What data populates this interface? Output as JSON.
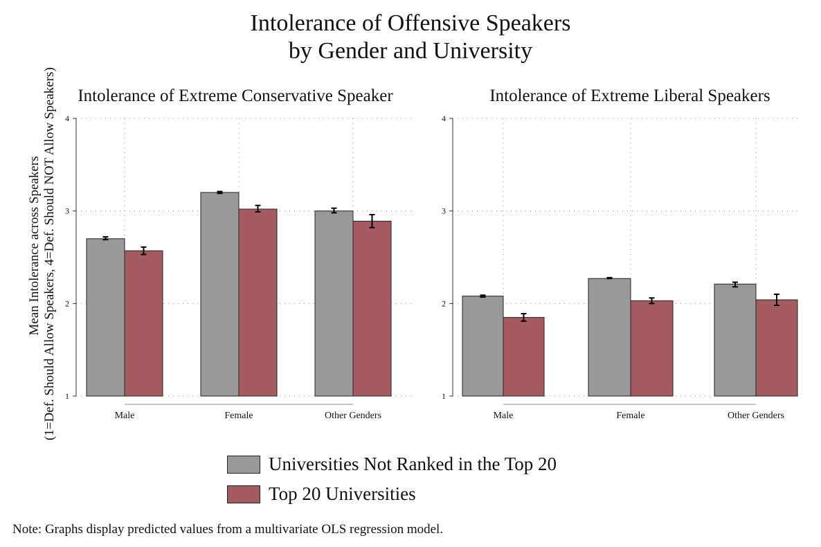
{
  "title_line1": "Intolerance of Offensive Speakers",
  "title_line2": "by Gender and University",
  "ylabel_line1": "Mean Intolerance across Speakers",
  "ylabel_line2": "(1=Def. Should Allow Speakers, 4=Def. Should NOT Allow Speakers)",
  "colors": {
    "not_top20": "#999999",
    "top20": "#a45c60",
    "axis": "#333333",
    "grid": "#888888"
  },
  "legend": [
    {
      "label": "Universities Not Ranked in the Top 20",
      "color": "#999999"
    },
    {
      "label": "Top 20 Universities",
      "color": "#a45c60"
    }
  ],
  "note": "Note: Graphs display predicted values from a multivariate OLS regression model.",
  "chart_data": [
    {
      "type": "bar",
      "title": "Intolerance of Extreme Conservative Speaker",
      "categories": [
        "Male",
        "Female",
        "Other Genders"
      ],
      "ylim": [
        1,
        4
      ],
      "yticks": [
        "1",
        "2",
        "3",
        "4"
      ],
      "grid": true,
      "series": [
        {
          "name": "Universities Not Ranked in the Top 20",
          "values": [
            2.7,
            3.2,
            3.0
          ],
          "ci_low": [
            2.69,
            3.19,
            2.98
          ],
          "ci_high": [
            2.72,
            3.21,
            3.03
          ]
        },
        {
          "name": "Top 20 Universities",
          "values": [
            2.57,
            3.02,
            2.89
          ],
          "ci_low": [
            2.53,
            2.99,
            2.82
          ],
          "ci_high": [
            2.61,
            3.06,
            2.96
          ]
        }
      ]
    },
    {
      "type": "bar",
      "title": "Intolerance of Extreme Liberal Speakers",
      "categories": [
        "Male",
        "Female",
        "Other Genders"
      ],
      "ylim": [
        1,
        4
      ],
      "yticks": [
        "1",
        "2",
        "3",
        "4"
      ],
      "grid": true,
      "series": [
        {
          "name": "Universities Not Ranked in the Top 20",
          "values": [
            2.08,
            2.27,
            2.21
          ],
          "ci_low": [
            2.07,
            2.27,
            2.18
          ],
          "ci_high": [
            2.09,
            2.28,
            2.23
          ]
        },
        {
          "name": "Top 20 Universities",
          "values": [
            1.85,
            2.03,
            2.04
          ],
          "ci_low": [
            1.81,
            2.0,
            1.98
          ],
          "ci_high": [
            1.89,
            2.06,
            2.1
          ]
        }
      ]
    }
  ]
}
